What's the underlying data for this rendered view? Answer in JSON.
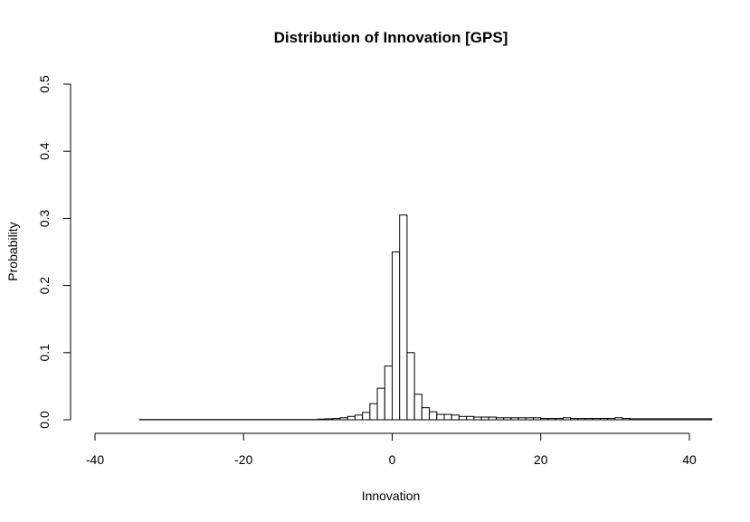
{
  "chart_data": {
    "type": "bar",
    "title": "Distribution of Innovation [GPS]",
    "xlabel": "Innovation",
    "ylabel": "Probability",
    "xlim": [
      -40,
      43
    ],
    "ylim": [
      0,
      0.5
    ],
    "x_ticks": [
      -40,
      -20,
      0,
      20,
      40
    ],
    "x_tick_labels": [
      "-40",
      "-20",
      "0",
      "20",
      "40"
    ],
    "y_ticks": [
      0.0,
      0.1,
      0.2,
      0.3,
      0.4,
      0.5
    ],
    "y_tick_labels": [
      "0.0",
      "0.1",
      "0.2",
      "0.3",
      "0.4",
      "0.5"
    ],
    "grid": false,
    "bin_width": 1,
    "bins": [
      {
        "x0": -34,
        "x1": -10,
        "value": 0.0004
      },
      {
        "x0": -10,
        "x1": -9,
        "value": 0.001
      },
      {
        "x0": -9,
        "x1": -8,
        "value": 0.0015
      },
      {
        "x0": -8,
        "x1": -7,
        "value": 0.002
      },
      {
        "x0": -7,
        "x1": -6,
        "value": 0.003
      },
      {
        "x0": -6,
        "x1": -5,
        "value": 0.005
      },
      {
        "x0": -5,
        "x1": -4,
        "value": 0.007
      },
      {
        "x0": -4,
        "x1": -3,
        "value": 0.011
      },
      {
        "x0": -3,
        "x1": -2,
        "value": 0.024
      },
      {
        "x0": -2,
        "x1": -1,
        "value": 0.047
      },
      {
        "x0": -1,
        "x1": 0,
        "value": 0.08
      },
      {
        "x0": 0,
        "x1": 1,
        "value": 0.25
      },
      {
        "x0": 1,
        "x1": 2,
        "value": 0.305
      },
      {
        "x0": 2,
        "x1": 3,
        "value": 0.1
      },
      {
        "x0": 3,
        "x1": 4,
        "value": 0.038
      },
      {
        "x0": 4,
        "x1": 5,
        "value": 0.018
      },
      {
        "x0": 5,
        "x1": 6,
        "value": 0.012
      },
      {
        "x0": 6,
        "x1": 7,
        "value": 0.008
      },
      {
        "x0": 7,
        "x1": 8,
        "value": 0.008
      },
      {
        "x0": 8,
        "x1": 9,
        "value": 0.007
      },
      {
        "x0": 9,
        "x1": 10,
        "value": 0.005
      },
      {
        "x0": 10,
        "x1": 11,
        "value": 0.005
      },
      {
        "x0": 11,
        "x1": 12,
        "value": 0.004
      },
      {
        "x0": 12,
        "x1": 13,
        "value": 0.004
      },
      {
        "x0": 13,
        "x1": 14,
        "value": 0.004
      },
      {
        "x0": 14,
        "x1": 15,
        "value": 0.003
      },
      {
        "x0": 15,
        "x1": 16,
        "value": 0.003
      },
      {
        "x0": 16,
        "x1": 17,
        "value": 0.003
      },
      {
        "x0": 17,
        "x1": 18,
        "value": 0.003
      },
      {
        "x0": 18,
        "x1": 19,
        "value": 0.003
      },
      {
        "x0": 19,
        "x1": 20,
        "value": 0.003
      },
      {
        "x0": 20,
        "x1": 21,
        "value": 0.002
      },
      {
        "x0": 21,
        "x1": 22,
        "value": 0.002
      },
      {
        "x0": 22,
        "x1": 23,
        "value": 0.002
      },
      {
        "x0": 23,
        "x1": 24,
        "value": 0.003
      },
      {
        "x0": 24,
        "x1": 25,
        "value": 0.002
      },
      {
        "x0": 25,
        "x1": 26,
        "value": 0.002
      },
      {
        "x0": 26,
        "x1": 27,
        "value": 0.002
      },
      {
        "x0": 27,
        "x1": 28,
        "value": 0.002
      },
      {
        "x0": 28,
        "x1": 29,
        "value": 0.002
      },
      {
        "x0": 29,
        "x1": 30,
        "value": 0.002
      },
      {
        "x0": 30,
        "x1": 31,
        "value": 0.003
      },
      {
        "x0": 31,
        "x1": 32,
        "value": 0.002
      },
      {
        "x0": 32,
        "x1": 43,
        "value": 0.0015
      }
    ]
  }
}
